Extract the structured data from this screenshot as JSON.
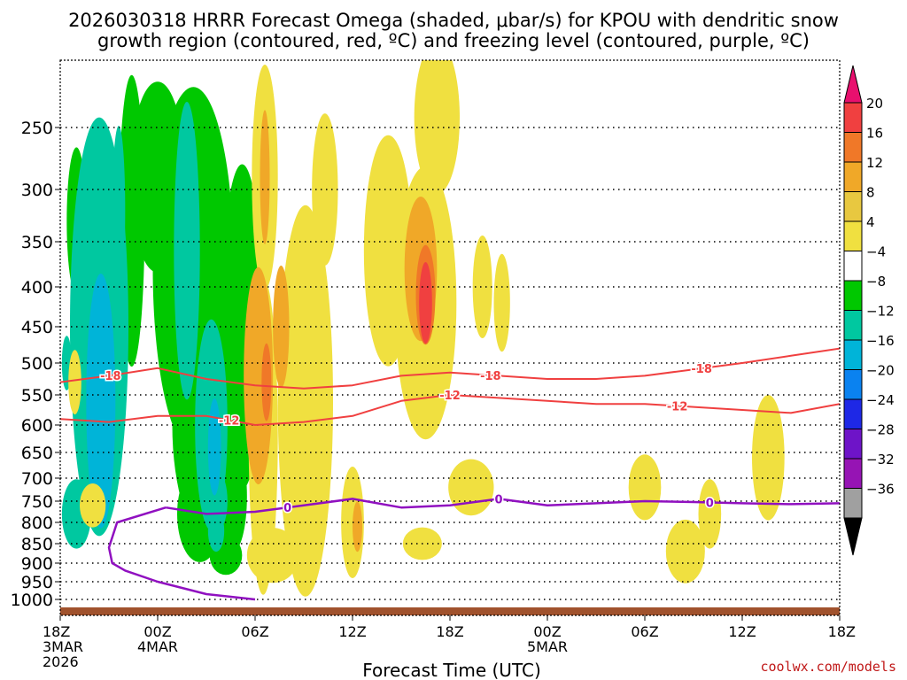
{
  "chart_data": {
    "type": "time-height contour",
    "title_line1": "2026030318 HRRR Forecast Omega (shaded, μbar/s) for KPOU with dendritic snow",
    "title_line2": "growth region (contoured, red, ºC) and freezing level (contoured, purple, ºC)",
    "xlabel": "Forecast Time (UTC)",
    "credit": "coolwx.com/models",
    "x_hours": [
      0,
      6,
      12,
      18,
      24,
      30,
      36,
      42,
      48
    ],
    "x_ticks": [
      {
        "hour": 0,
        "lines": [
          "18Z",
          "3MAR",
          "2026"
        ]
      },
      {
        "hour": 6,
        "lines": [
          "00Z",
          "4MAR"
        ]
      },
      {
        "hour": 12,
        "lines": [
          "06Z"
        ]
      },
      {
        "hour": 18,
        "lines": [
          "12Z"
        ]
      },
      {
        "hour": 24,
        "lines": [
          "18Z"
        ]
      },
      {
        "hour": 30,
        "lines": [
          "00Z",
          "5MAR"
        ]
      },
      {
        "hour": 36,
        "lines": [
          "06Z"
        ]
      },
      {
        "hour": 42,
        "lines": [
          "12Z"
        ]
      },
      {
        "hour": 48,
        "lines": [
          "18Z"
        ]
      }
    ],
    "y_levels": [
      250,
      300,
      350,
      400,
      450,
      500,
      550,
      600,
      650,
      700,
      750,
      800,
      850,
      900,
      950,
      1000
    ],
    "ylim": [
      200,
      1020
    ],
    "colorbar": {
      "labels": [
        "20",
        "16",
        "12",
        "8",
        "4",
        "−4",
        "−8",
        "−12",
        "−16",
        "−20",
        "−24",
        "−28",
        "−32",
        "−36"
      ],
      "colors": [
        "#e8106e",
        "#f04040",
        "#f07828",
        "#f0a828",
        "#e8c840",
        "#f0e040",
        "#ffffff",
        "#00c800",
        "#00c8a0",
        "#00b4d8",
        "#0a82f0",
        "#1e28e6",
        "#6e14c8",
        "#9614b4",
        "#a0a0a0",
        "#000000"
      ]
    },
    "omega_regions": [
      {
        "t": 1.0,
        "p": 330,
        "wt": 0.6,
        "hp": 70,
        "v": "-4"
      },
      {
        "t": 4.4,
        "p": 330,
        "wt": 0.8,
        "hp": 180,
        "v": "-4"
      },
      {
        "t": 6.0,
        "p": 290,
        "wt": 1.7,
        "hp": 90,
        "v": "-4"
      },
      {
        "t": 8.2,
        "p": 380,
        "wt": 2.5,
        "hp": 250,
        "v": "-4"
      },
      {
        "t": 9.3,
        "p": 600,
        "wt": 2.4,
        "hp": 200,
        "v": "-4"
      },
      {
        "t": 11.2,
        "p": 450,
        "wt": 1.3,
        "hp": 200,
        "v": "-4"
      },
      {
        "t": 8.6,
        "p": 780,
        "wt": 1.4,
        "hp": 110,
        "v": "-4"
      },
      {
        "t": 10.6,
        "p": 740,
        "wt": 0.9,
        "hp": 120,
        "v": "-4"
      },
      {
        "t": 10.2,
        "p": 880,
        "wt": 1.0,
        "hp": 50,
        "v": "-4"
      },
      {
        "t": 7.8,
        "p": 360,
        "wt": 0.8,
        "hp": 160,
        "v": "-8"
      },
      {
        "t": 9.3,
        "p": 600,
        "wt": 1.0,
        "hp": 180,
        "v": "-8"
      },
      {
        "t": 9.8,
        "p": 750,
        "wt": 0.5,
        "hp": 60,
        "v": "-8"
      },
      {
        "t": 9.6,
        "p": 820,
        "wt": 0.5,
        "hp": 50,
        "v": "-8"
      },
      {
        "t": 9.5,
        "p": 640,
        "wt": 0.4,
        "hp": 90,
        "v": "-12"
      },
      {
        "t": 2.4,
        "p": 450,
        "wt": 1.8,
        "hp": 290,
        "v": "-8"
      },
      {
        "t": 3.6,
        "p": 320,
        "wt": 0.4,
        "hp": 80,
        "v": "-8"
      },
      {
        "t": 2.5,
        "p": 560,
        "wt": 0.9,
        "hp": 200,
        "v": "-12"
      },
      {
        "t": 1.0,
        "p": 780,
        "wt": 0.9,
        "hp": 80,
        "v": "-8"
      },
      {
        "t": 0.4,
        "p": 500,
        "wt": 0.3,
        "hp": 40,
        "v": "-8"
      }
    ],
    "up_regions": [
      {
        "t": 12.6,
        "p": 290,
        "wt": 0.8,
        "hp": 130,
        "v": "4"
      },
      {
        "t": 12.5,
        "p": 620,
        "wt": 0.9,
        "hp": 270,
        "v": "4"
      },
      {
        "t": 13.1,
        "p": 880,
        "wt": 1.6,
        "hp": 70,
        "v": "4"
      },
      {
        "t": 15.1,
        "p": 560,
        "wt": 1.7,
        "hp": 290,
        "v": "4"
      },
      {
        "t": 16.3,
        "p": 300,
        "wt": 0.8,
        "hp": 70,
        "v": "4"
      },
      {
        "t": 18.0,
        "p": 800,
        "wt": 0.7,
        "hp": 130,
        "v": "4"
      },
      {
        "t": 20.2,
        "p": 360,
        "wt": 1.5,
        "hp": 120,
        "v": "4"
      },
      {
        "t": 22.5,
        "p": 420,
        "wt": 1.9,
        "hp": 160,
        "v": "4"
      },
      {
        "t": 23.2,
        "p": 240,
        "wt": 1.4,
        "hp": 100,
        "v": "4"
      },
      {
        "t": 25.3,
        "p": 720,
        "wt": 1.4,
        "hp": 60,
        "v": "4"
      },
      {
        "t": 26.0,
        "p": 400,
        "wt": 0.6,
        "hp": 60,
        "v": "4"
      },
      {
        "t": 22.3,
        "p": 850,
        "wt": 1.2,
        "hp": 40,
        "v": "4"
      },
      {
        "t": 27.2,
        "p": 420,
        "wt": 0.5,
        "hp": 60,
        "v": "4"
      },
      {
        "t": 36.0,
        "p": 720,
        "wt": 1.0,
        "hp": 70,
        "v": "4"
      },
      {
        "t": 38.5,
        "p": 870,
        "wt": 1.2,
        "hp": 80,
        "v": "4"
      },
      {
        "t": 40.0,
        "p": 780,
        "wt": 0.7,
        "hp": 80,
        "v": "4"
      },
      {
        "t": 43.6,
        "p": 660,
        "wt": 1.0,
        "hp": 120,
        "v": "4"
      },
      {
        "t": 2.0,
        "p": 760,
        "wt": 0.8,
        "hp": 50,
        "v": "4"
      },
      {
        "t": 0.9,
        "p": 530,
        "wt": 0.4,
        "hp": 50,
        "v": "4"
      },
      {
        "t": 12.6,
        "p": 290,
        "wt": 0.3,
        "hp": 60,
        "v": "8"
      },
      {
        "t": 12.2,
        "p": 520,
        "wt": 0.9,
        "hp": 160,
        "v": "8"
      },
      {
        "t": 13.6,
        "p": 450,
        "wt": 0.5,
        "hp": 80,
        "v": "8"
      },
      {
        "t": 18.3,
        "p": 810,
        "wt": 0.3,
        "hp": 60,
        "v": "8"
      },
      {
        "t": 22.2,
        "p": 380,
        "wt": 1.0,
        "hp": 80,
        "v": "8"
      },
      {
        "t": 22.5,
        "p": 410,
        "wt": 0.6,
        "hp": 60,
        "v": "12"
      },
      {
        "t": 22.5,
        "p": 420,
        "wt": 0.4,
        "hp": 50,
        "v": "16"
      },
      {
        "t": 12.7,
        "p": 530,
        "wt": 0.3,
        "hp": 60,
        "v": "12"
      }
    ],
    "dgz_upper": {
      "label": "-18",
      "hours": [
        0,
        3,
        6,
        9,
        12,
        15,
        18,
        21,
        24,
        27,
        30,
        33,
        36,
        39,
        42,
        45,
        48
      ],
      "p": [
        530,
        520,
        508,
        525,
        535,
        540,
        535,
        520,
        515,
        520,
        525,
        525,
        520,
        510,
        500,
        490,
        480
      ]
    },
    "dgz_lower": {
      "label": "-12",
      "hours": [
        0,
        3,
        6,
        9,
        12,
        15,
        18,
        21,
        24,
        27,
        30,
        33,
        36,
        39,
        42,
        45,
        48
      ],
      "p": [
        590,
        595,
        585,
        585,
        600,
        595,
        585,
        560,
        550,
        555,
        560,
        565,
        565,
        570,
        575,
        580,
        565
      ]
    },
    "freezing_level": {
      "label": "0",
      "hours": [
        6.5,
        9,
        12,
        15,
        18,
        21,
        24,
        27,
        30,
        33,
        36,
        39,
        42,
        45,
        48
      ],
      "p": [
        765,
        780,
        775,
        760,
        745,
        765,
        760,
        745,
        760,
        755,
        750,
        752,
        755,
        757,
        755
      ],
      "loop_hours": [
        6.5,
        3.5,
        3.0,
        3.2,
        4.0,
        6.0,
        9.0,
        12.0
      ],
      "loop_p": [
        765,
        800,
        860,
        900,
        920,
        950,
        985,
        1000
      ]
    },
    "ground_level": 1010
  }
}
